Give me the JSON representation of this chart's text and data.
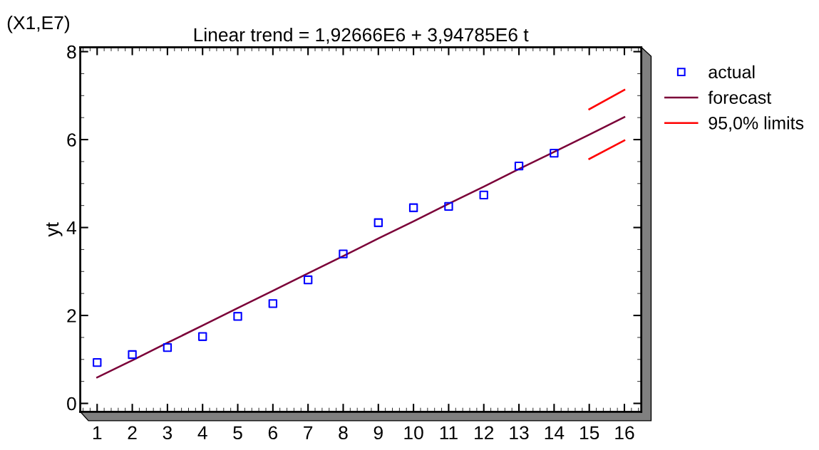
{
  "chart_data": {
    "type": "line",
    "title": "Linear trend = 1,92666E6 + 3,94785E6 t",
    "ylabel": "yt",
    "annotations": [
      "(X1,E7)"
    ],
    "x": [
      1,
      2,
      3,
      4,
      5,
      6,
      7,
      8,
      9,
      10,
      11,
      12,
      13,
      14,
      15,
      16
    ],
    "series": [
      {
        "name": "actual",
        "type": "scatter",
        "marker": "square",
        "color": "#0000ff",
        "x": [
          1,
          2,
          3,
          4,
          5,
          6,
          7,
          8,
          9,
          10,
          11,
          12,
          13,
          14
        ],
        "values": [
          0.93,
          1.11,
          1.27,
          1.52,
          1.98,
          2.27,
          2.81,
          3.4,
          4.11,
          4.45,
          4.48,
          4.74,
          5.4,
          5.69
        ]
      },
      {
        "name": "forecast",
        "color": "#7b0038",
        "values": [
          0.59,
          0.98,
          1.38,
          1.77,
          2.17,
          2.56,
          2.96,
          3.35,
          3.75,
          4.14,
          4.54,
          4.93,
          5.33,
          5.72,
          6.11,
          6.51
        ]
      },
      {
        "name": "95,0% limits",
        "color": "#ff0000",
        "x": [
          15,
          16
        ],
        "values": [
          6.69,
          7.13
        ]
      },
      {
        "color": "#ff0000",
        "x": [
          15,
          16
        ],
        "values": [
          5.56,
          5.98
        ]
      }
    ],
    "xlim": [
      0.52,
      16.48
    ],
    "xticks": [
      1,
      2,
      3,
      4,
      5,
      6,
      7,
      8,
      9,
      10,
      11,
      12,
      13,
      14,
      15,
      16
    ],
    "ylim": [
      -0.19,
      8.1
    ],
    "yticks": [
      0,
      2,
      4,
      6,
      8
    ],
    "grid": false,
    "legend": "right"
  }
}
